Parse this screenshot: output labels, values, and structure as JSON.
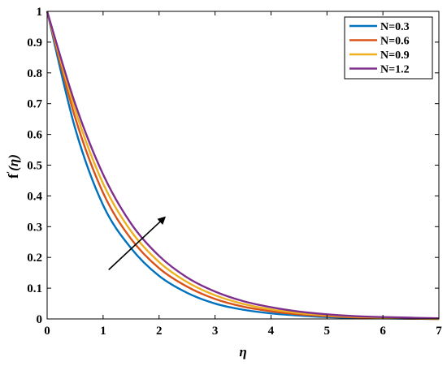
{
  "chart_data": {
    "type": "line",
    "title": "",
    "xlabel": "η",
    "ylabel_main": "f",
    "ylabel_prime": "′",
    "ylabel_arg": "(η)",
    "xlim": [
      0,
      7
    ],
    "ylim": [
      0,
      1
    ],
    "xticks": [
      0,
      1,
      2,
      3,
      4,
      5,
      6,
      7
    ],
    "yticks": [
      0,
      0.1,
      0.2,
      0.3,
      0.4,
      0.5,
      0.6,
      0.7,
      0.8,
      0.9,
      1
    ],
    "ytick_labels": [
      "0",
      "0.1",
      "0.2",
      "0.3",
      "0.4",
      "0.5",
      "0.6",
      "0.7",
      "0.8",
      "0.9",
      "1"
    ],
    "grid": false,
    "legend_position": "top-right",
    "x": [
      0,
      0.5,
      1,
      1.5,
      2,
      2.5,
      3,
      3.5,
      4,
      4.5,
      5,
      5.5,
      6,
      6.5,
      7
    ],
    "series": [
      {
        "name": "N=0.3",
        "color": "#0072BD",
        "values": [
          1.0,
          0.62,
          0.37,
          0.23,
          0.14,
          0.085,
          0.05,
          0.03,
          0.018,
          0.011,
          0.006,
          0.003,
          0.002,
          0.001,
          0.0
        ]
      },
      {
        "name": "N=0.6",
        "color": "#D95319",
        "values": [
          1.0,
          0.655,
          0.41,
          0.26,
          0.165,
          0.105,
          0.065,
          0.04,
          0.025,
          0.015,
          0.009,
          0.005,
          0.003,
          0.001,
          0.0
        ]
      },
      {
        "name": "N=0.9",
        "color": "#EDB120",
        "values": [
          1.0,
          0.68,
          0.44,
          0.285,
          0.185,
          0.12,
          0.077,
          0.049,
          0.031,
          0.019,
          0.012,
          0.007,
          0.004,
          0.002,
          0.0
        ]
      },
      {
        "name": "N=1.2",
        "color": "#7E2F8E",
        "values": [
          1.0,
          0.7,
          0.47,
          0.31,
          0.205,
          0.135,
          0.089,
          0.058,
          0.038,
          0.024,
          0.015,
          0.009,
          0.006,
          0.004,
          0.002
        ]
      }
    ],
    "annotations": [
      {
        "type": "arrow",
        "from": [
          1.1,
          0.16
        ],
        "to": [
          2.1,
          0.33
        ],
        "meaning": "increasing N"
      }
    ]
  }
}
